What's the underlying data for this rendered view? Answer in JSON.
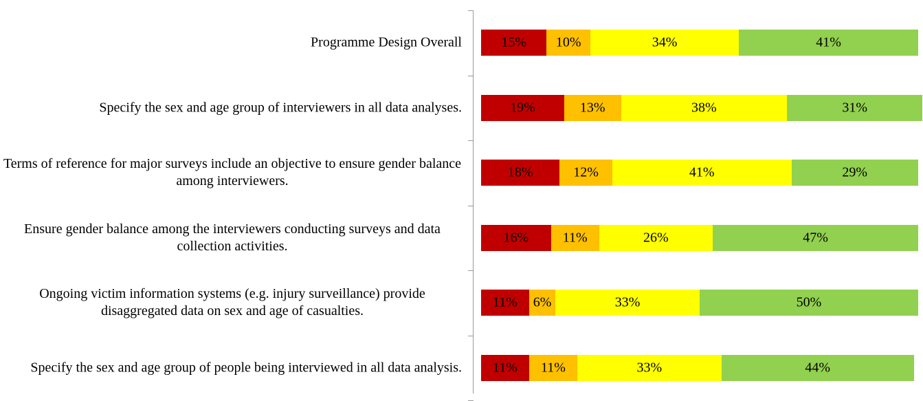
{
  "chart_data": {
    "type": "stacked-bar-horizontal",
    "categories": [
      "Programme Design Overall",
      "Specify the sex and age group of interviewers in all data analyses.",
      "Terms of reference for major surveys include an objective to ensure gender balance among interviewers.",
      "Ensure gender balance among the interviewers conducting surveys and data collection activities.",
      "Ongoing victim information systems (e.g. injury surveillance) provide disaggregated data on sex and age of casualties.",
      "Specify the sex and age group of people being interviewed in all data analysis."
    ],
    "series": [
      {
        "color": "#c00000",
        "values": [
          15,
          19,
          18,
          16,
          11,
          11
        ],
        "value_labels": [
          "15%",
          "19%",
          "18%",
          "16%",
          "11%",
          "11%"
        ]
      },
      {
        "color": "#ffc000",
        "values": [
          10,
          13,
          12,
          11,
          6,
          11
        ],
        "value_labels": [
          "10%",
          "13%",
          "12%",
          "11%",
          "6%",
          "11%"
        ]
      },
      {
        "color": "#ffff00",
        "values": [
          34,
          38,
          41,
          26,
          33,
          33
        ],
        "value_labels": [
          "34%",
          "38%",
          "41%",
          "26%",
          "33%",
          "33%"
        ]
      },
      {
        "color": "#92d050",
        "values": [
          41,
          31,
          29,
          47,
          50,
          44
        ],
        "value_labels": [
          "41%",
          "31%",
          "29%",
          "47%",
          "50%",
          "44%"
        ]
      }
    ],
    "xlim": [
      0,
      100
    ]
  }
}
